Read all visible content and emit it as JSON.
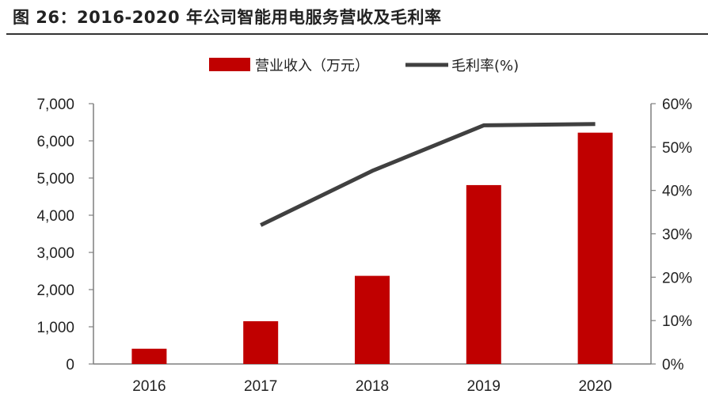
{
  "header": {
    "title": "图 26：2016-2020 年公司智能用电服务营收及毛利率"
  },
  "colors": {
    "bar": "#C00000",
    "line": "#404040",
    "axis": "#7f7f7f",
    "text": "#222222"
  },
  "chart_data": {
    "type": "bar+line",
    "title": "图 26：2016-2020 年公司智能用电服务营收及毛利率",
    "categories": [
      "2016",
      "2017",
      "2018",
      "2019",
      "2020"
    ],
    "series": [
      {
        "name": "营业收入（万元）",
        "type": "bar",
        "axis": "left",
        "values": [
          410,
          1150,
          2370,
          4810,
          6220
        ]
      },
      {
        "name": "毛利率(%)",
        "type": "line",
        "axis": "right",
        "values": [
          null,
          32.0,
          44.5,
          55.0,
          55.3
        ]
      }
    ],
    "y_left": {
      "ylim": [
        0,
        7000
      ],
      "ticks": [
        0,
        1000,
        2000,
        3000,
        4000,
        5000,
        6000,
        7000
      ],
      "tick_labels": [
        "0",
        "1,000",
        "2,000",
        "3,000",
        "4,000",
        "5,000",
        "6,000",
        "7,000"
      ]
    },
    "y_right": {
      "ylim": [
        0,
        60
      ],
      "ticks": [
        0,
        10,
        20,
        30,
        40,
        50,
        60
      ],
      "tick_labels": [
        "0%",
        "10%",
        "20%",
        "30%",
        "40%",
        "50%",
        "60%"
      ]
    },
    "xlabel": "",
    "ylabel": "",
    "grid": false,
    "legend": "top"
  }
}
